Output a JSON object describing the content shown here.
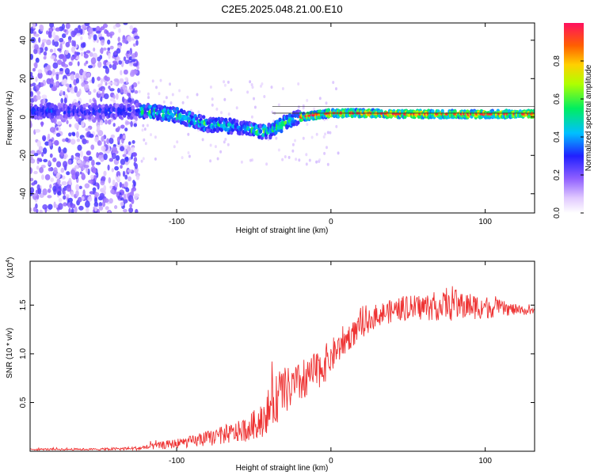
{
  "title": "C2E5.2025.048.21.00.E10",
  "chart_data": [
    {
      "type": "heatmap",
      "xlabel": "Height of straight line (km)",
      "ylabel": "Frequency (Hz)",
      "xlim": [
        -195,
        132
      ],
      "ylim": [
        -50,
        49
      ],
      "x_ticks": [
        -100,
        0,
        100
      ],
      "y_ticks": [
        -40,
        -20,
        0,
        20,
        40
      ],
      "colorbar": {
        "label": "Normalized spectral amplitude",
        "range": [
          0.0,
          1.0
        ],
        "ticks": [
          "0.0",
          "0.2",
          "0.4",
          "0.6",
          "0.8"
        ],
        "ticks_values": [
          0.0,
          0.2,
          0.4,
          0.6,
          0.8
        ]
      },
      "ridge": {
        "x": [
          -195,
          -140,
          -120,
          -100,
          -80,
          -60,
          -45,
          -38,
          -30,
          -20,
          -10,
          0,
          20,
          50,
          80,
          110,
          132
        ],
        "frequency": [
          3,
          3,
          3,
          1,
          -4,
          -5,
          -8,
          -7,
          -3,
          0,
          1,
          2,
          2,
          1.5,
          1.5,
          1.5,
          1.5
        ]
      },
      "reference_line_frequency": 2,
      "scatter_noise_region_x": [
        -195,
        -125
      ]
    },
    {
      "type": "line",
      "xlabel": "Height of straight line (km)",
      "ylabel": "SNR (10 * v/v)",
      "y_multiplier_label": "(x10",
      "y_multiplier_exp": "4",
      "y_multiplier_close": ")",
      "xlim": [
        -195,
        132
      ],
      "ylim": [
        0,
        1.95
      ],
      "x_ticks": [
        -100,
        0,
        100
      ],
      "y_ticks": [
        0.5,
        1.0,
        1.5
      ],
      "y_tick_labels": [
        "0.5",
        "1.0",
        "1.5"
      ],
      "color": "#ee3333",
      "series_envelope": {
        "x": [
          -195,
          -150,
          -125,
          -110,
          -90,
          -80,
          -65,
          -55,
          -45,
          -38,
          -32,
          -25,
          -15,
          -5,
          0,
          10,
          20,
          30,
          45,
          60,
          80,
          100,
          115,
          132
        ],
        "mean": [
          0.02,
          0.02,
          0.03,
          0.06,
          0.1,
          0.13,
          0.18,
          0.22,
          0.32,
          0.48,
          0.6,
          0.65,
          0.75,
          0.88,
          0.97,
          1.15,
          1.28,
          1.4,
          1.46,
          1.48,
          1.5,
          1.48,
          1.46,
          1.43
        ],
        "spread": [
          0.01,
          0.01,
          0.02,
          0.04,
          0.06,
          0.08,
          0.1,
          0.12,
          0.18,
          0.25,
          0.25,
          0.22,
          0.2,
          0.2,
          0.18,
          0.14,
          0.12,
          0.12,
          0.12,
          0.14,
          0.16,
          0.12,
          0.07,
          0.03
        ]
      }
    }
  ]
}
